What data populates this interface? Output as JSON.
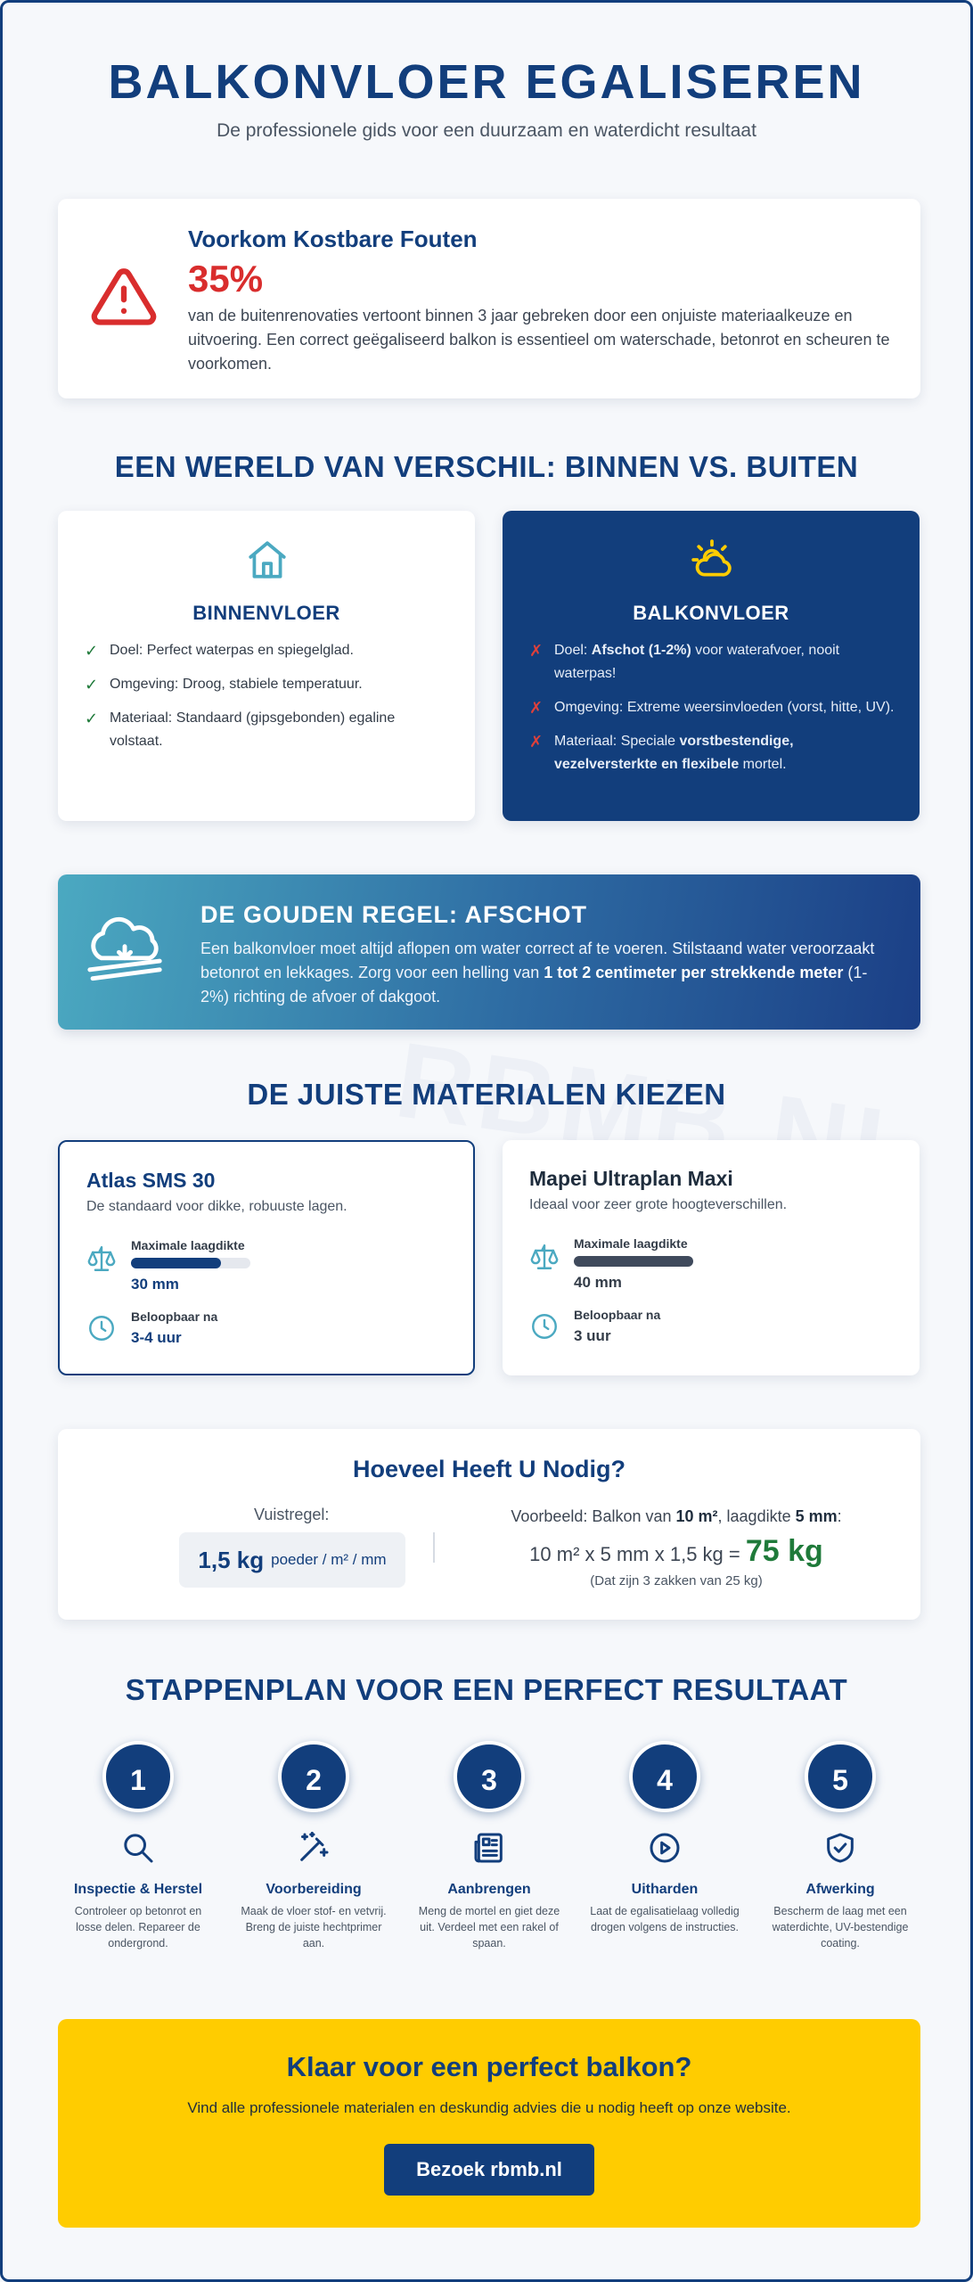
{
  "hero": {
    "title": "BALKONVLOER EGALISEREN",
    "subtitle": "De professionele gids voor een duurzaam en waterdicht resultaat"
  },
  "warning": {
    "icon": "alert-triangle-icon",
    "title": "Voorkom Kostbare Fouten",
    "stat": "35%",
    "text": "van de buitenrenovaties vertoont binnen 3 jaar gebreken door een onjuiste materiaalkeuze en uitvoering. Een correct geëgaliseerd balkon is essentieel om waterschade, betonrot en scheuren te voorkomen.",
    "color": "#d92d2d"
  },
  "comparison": {
    "title": "EEN WERELD VAN VERSCHIL: BINNEN VS. BUITEN",
    "indoor": {
      "icon": "home-icon",
      "title": "BINNENVLOER",
      "items": [
        "Doel: Perfect waterpas en spiegelglad.",
        "Omgeving: Droog, stabiele temperatuur.",
        "Materiaal: Standaard (gipsgebonden) egaline volstaat."
      ]
    },
    "balcony": {
      "icon": "cloud-sun-icon",
      "title": "BALKONVLOER",
      "items": [
        {
          "pre": "Doel: ",
          "bold": "Afschot (1-2%)",
          "post": " voor waterafvoer, nooit waterpas!"
        },
        {
          "pre": "Omgeving: Extreme weersinvloeden (vorst, hitte, UV).",
          "bold": "",
          "post": ""
        },
        {
          "pre": "Materiaal: Speciale ",
          "bold": "vorstbestendige, vezelversterkte en flexibele",
          "post": " mortel."
        }
      ]
    }
  },
  "golden_rule": {
    "icon": "cloud-rain-icon",
    "title": "DE GOUDEN REGEL: AFSCHOT",
    "text_pre": "Een balkonvloer moet altijd aflopen om water correct af te voeren. Stilstaand water veroorzaakt betonrot en lekkages. Zorg voor een helling van ",
    "text_bold": "1 tot 2 centimeter per strekkende meter",
    "text_post": " (1-2%) richting de afvoer of dakgoot."
  },
  "materials": {
    "title": "DE JUISTE MATERIALEN KIEZEN",
    "items": [
      {
        "name": "Atlas SMS 30",
        "desc": "De standaard voor dikke, robuuste lagen.",
        "thickness_label": "Maximale laagdikte",
        "thickness": "30 mm",
        "thickness_fraction": 0.75,
        "bar_color": "#123e7c",
        "walkable_label": "Beloopbaar na",
        "walkable": "3-4 uur"
      },
      {
        "name": "Mapei Ultraplan Maxi",
        "desc": "Ideaal voor zeer grote hoogteverschillen.",
        "thickness_label": "Maximale laagdikte",
        "thickness": "40 mm",
        "thickness_fraction": 1.0,
        "bar_color": "#3f4a5c",
        "walkable_label": "Beloopbaar na",
        "walkable": "3 uur"
      }
    ]
  },
  "calculator": {
    "title": "Hoeveel Heeft U Nodig?",
    "rule_label": "Vuistregel:",
    "rule_value": "1,5 kg",
    "rule_unit": "poeder / m² / mm",
    "example_pre": "Voorbeeld: Balkon van ",
    "example_area": "10 m²",
    "example_mid": ", laagdikte ",
    "example_thickness": "5 mm",
    "example_post": ":",
    "formula": "10 m² x 5 mm x 1,5 kg = ",
    "result": "75 kg",
    "note": "(Dat zijn 3 zakken van 25 kg)"
  },
  "steps": {
    "title": "STAPPENPLAN VOOR EEN PERFECT RESULTAAT",
    "items": [
      {
        "number": "1",
        "icon": "search-icon",
        "title": "Inspectie & Herstel",
        "desc": "Controleer op betonrot en losse delen. Repareer de ondergrond."
      },
      {
        "number": "2",
        "icon": "sparkles-wand-icon",
        "title": "Voorbereiding",
        "desc": "Maak de vloer stof- en vetvrij. Breng de juiste hechtprimer aan."
      },
      {
        "number": "3",
        "icon": "newspaper-icon",
        "title": "Aanbrengen",
        "desc": "Meng de mortel en giet deze uit. Verdeel met een rakel of spaan."
      },
      {
        "number": "4",
        "icon": "play-circle-icon",
        "title": "Uitharden",
        "desc": "Laat de egalisatielaag volledig drogen volgens de instructies."
      },
      {
        "number": "5",
        "icon": "shield-check-icon",
        "title": "Afwerking",
        "desc": "Bescherm de laag met een waterdichte, UV-bestendige coating."
      }
    ]
  },
  "cta": {
    "title": "Klaar voor een perfect balkon?",
    "text": "Vind alle professionele materialen en deskundig advies die u nodig heeft op onze website.",
    "button": "Bezoek rbmb.nl"
  },
  "watermark": "RBMB.NL",
  "colors": {
    "primary": "#123e7c",
    "accent_yellow": "#ffcc00",
    "success": "#1f7a3a",
    "danger": "#d92d2d",
    "teal_icon": "#4ba9c1"
  }
}
